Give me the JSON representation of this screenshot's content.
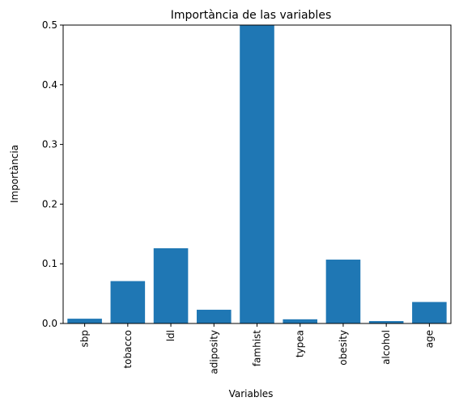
{
  "chart_data": {
    "type": "bar",
    "title": "Importància de las variables",
    "xlabel": "Variables",
    "ylabel": "Importància",
    "categories": [
      "sbp",
      "tobacco",
      "ldl",
      "adiposity",
      "famhist",
      "typea",
      "obesity",
      "alcohol",
      "age"
    ],
    "values": [
      0.008,
      0.071,
      0.126,
      0.023,
      0.5,
      0.007,
      0.107,
      0.004,
      0.036
    ],
    "ylim": [
      0,
      0.5
    ],
    "yticks": [
      "0.0",
      "0.1",
      "0.2",
      "0.3",
      "0.4",
      "0.5"
    ],
    "grid": false,
    "bar_color": "#1f77b4"
  }
}
